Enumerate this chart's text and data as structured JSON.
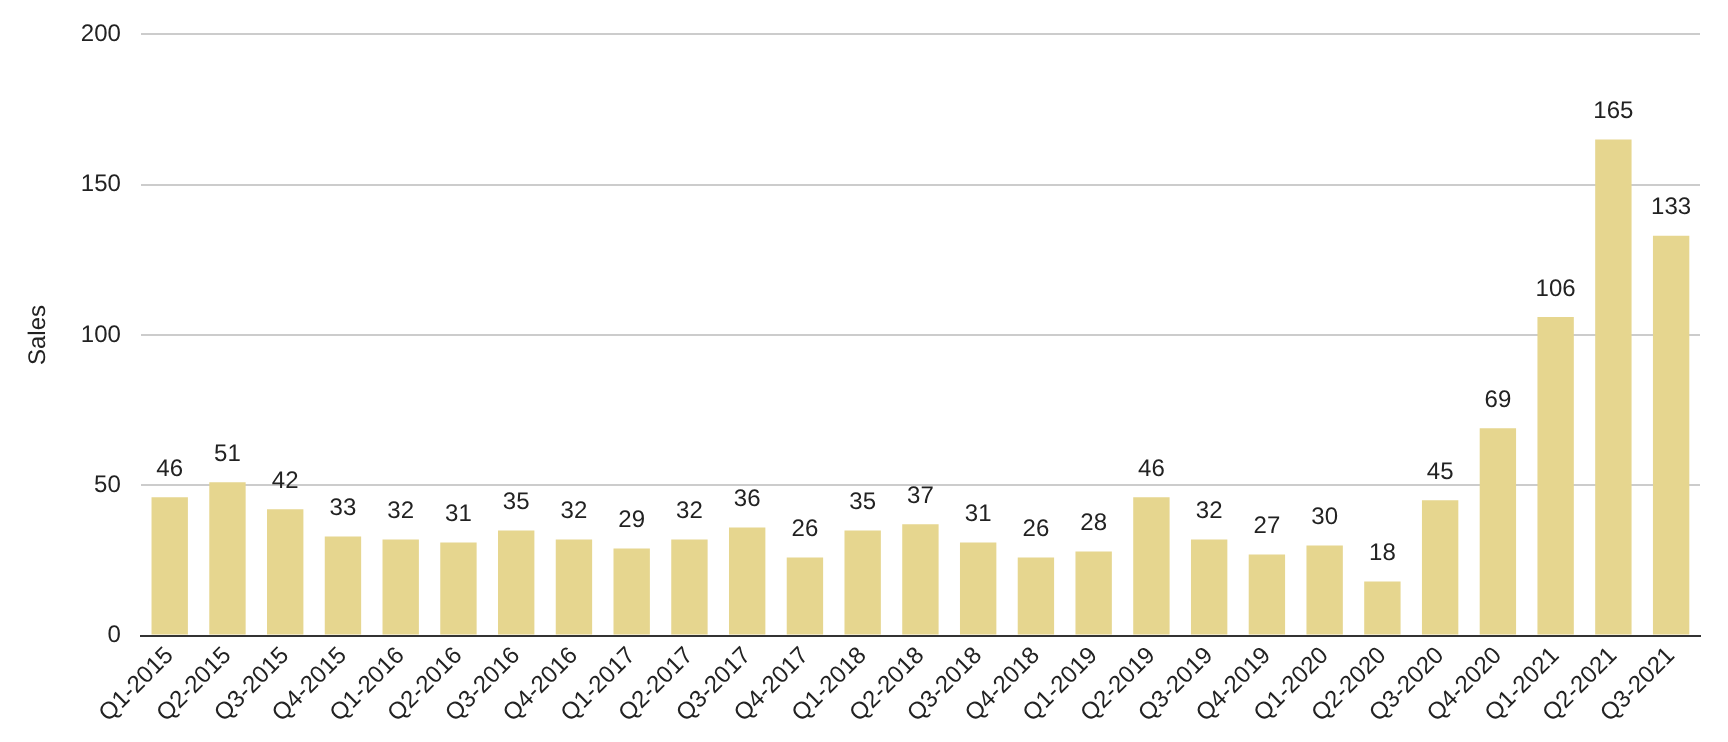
{
  "chart_data": {
    "type": "bar",
    "ylabel": "Sales",
    "categories": [
      "Q1-2015",
      "Q2-2015",
      "Q3-2015",
      "Q4-2015",
      "Q1-2016",
      "Q2-2016",
      "Q3-2016",
      "Q4-2016",
      "Q1-2017",
      "Q2-2017",
      "Q3-2017",
      "Q4-2017",
      "Q1-2018",
      "Q2-2018",
      "Q3-2018",
      "Q4-2018",
      "Q1-2019",
      "Q2-2019",
      "Q3-2019",
      "Q4-2019",
      "Q1-2020",
      "Q2-2020",
      "Q3-2020",
      "Q4-2020",
      "Q1-2021",
      "Q2-2021",
      "Q3-2021"
    ],
    "values": [
      46,
      51,
      42,
      33,
      32,
      31,
      35,
      32,
      29,
      32,
      36,
      26,
      35,
      37,
      31,
      26,
      28,
      46,
      32,
      27,
      30,
      18,
      45,
      69,
      106,
      165,
      133
    ],
    "color": "#e6d68f",
    "ylim": [
      0,
      200
    ],
    "yticks": [
      0,
      50,
      100,
      150,
      200
    ],
    "grid": "y",
    "data_labels": true
  }
}
